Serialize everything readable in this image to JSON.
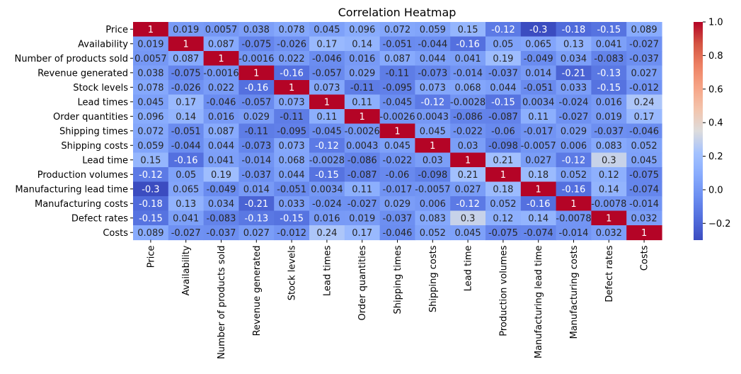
{
  "chart_data": {
    "type": "heatmap",
    "title": "Correlation Heatmap",
    "colormap": "coolwarm",
    "row_labels": [
      "Price",
      "Availability",
      "Number of products sold",
      "Revenue generated",
      "Stock levels",
      "Lead times",
      "Order quantities",
      "Shipping times",
      "Shipping costs",
      "Lead time",
      "Production volumes",
      "Manufacturing lead time",
      "Manufacturing costs",
      "Defect rates",
      "Costs"
    ],
    "col_labels": [
      "Price",
      "Availability",
      "Number of products sold",
      "Revenue generated",
      "Stock levels",
      "Lead times",
      "Order quantities",
      "Shipping times",
      "Shipping costs",
      "Lead time",
      "Production volumes",
      "Manufacturing lead time",
      "Manufacturing costs",
      "Defect rates",
      "Costs"
    ],
    "values": [
      [
        1,
        0.019,
        0.0057,
        0.038,
        0.078,
        0.045,
        0.096,
        0.072,
        0.059,
        0.15,
        -0.12,
        -0.3,
        -0.18,
        -0.15,
        0.089
      ],
      [
        0.019,
        1,
        0.087,
        -0.075,
        -0.026,
        0.17,
        0.14,
        -0.051,
        -0.044,
        -0.16,
        0.05,
        0.065,
        0.13,
        0.041,
        -0.027
      ],
      [
        0.0057,
        0.087,
        1,
        -0.0016,
        0.022,
        -0.046,
        0.016,
        0.087,
        0.044,
        0.041,
        0.19,
        -0.049,
        0.034,
        -0.083,
        -0.037
      ],
      [
        0.038,
        -0.075,
        -0.0016,
        1,
        -0.16,
        -0.057,
        0.029,
        -0.11,
        -0.073,
        -0.014,
        -0.037,
        0.014,
        -0.21,
        -0.13,
        0.027
      ],
      [
        0.078,
        -0.026,
        0.022,
        -0.16,
        1,
        0.073,
        -0.11,
        -0.095,
        0.073,
        0.068,
        0.044,
        -0.051,
        0.033,
        -0.15,
        -0.012
      ],
      [
        0.045,
        0.17,
        -0.046,
        -0.057,
        0.073,
        1,
        0.11,
        -0.045,
        -0.12,
        -0.0028,
        -0.15,
        0.0034,
        -0.024,
        0.016,
        0.24
      ],
      [
        0.096,
        0.14,
        0.016,
        0.029,
        -0.11,
        0.11,
        1,
        -0.0026,
        0.0043,
        -0.086,
        -0.087,
        0.11,
        -0.027,
        0.019,
        0.17
      ],
      [
        0.072,
        -0.051,
        0.087,
        -0.11,
        -0.095,
        -0.045,
        -0.0026,
        1,
        0.045,
        -0.022,
        -0.06,
        -0.017,
        0.029,
        -0.037,
        -0.046
      ],
      [
        0.059,
        -0.044,
        0.044,
        -0.073,
        0.073,
        -0.12,
        0.0043,
        0.045,
        1,
        0.03,
        -0.098,
        -0.0057,
        0.006,
        0.083,
        0.052
      ],
      [
        0.15,
        -0.16,
        0.041,
        -0.014,
        0.068,
        -0.0028,
        -0.086,
        -0.022,
        0.03,
        1,
        0.21,
        0.027,
        -0.12,
        0.3,
        0.045
      ],
      [
        -0.12,
        0.05,
        0.19,
        -0.037,
        0.044,
        -0.15,
        -0.087,
        -0.06,
        -0.098,
        0.21,
        1,
        0.18,
        0.052,
        0.12,
        -0.075
      ],
      [
        -0.3,
        0.065,
        -0.049,
        0.014,
        -0.051,
        0.0034,
        0.11,
        -0.017,
        -0.0057,
        0.027,
        0.18,
        1,
        -0.16,
        0.14,
        -0.074
      ],
      [
        -0.18,
        0.13,
        0.034,
        -0.21,
        0.033,
        -0.024,
        -0.027,
        0.029,
        0.006,
        -0.12,
        0.052,
        -0.16,
        1,
        -0.0078,
        -0.014
      ],
      [
        -0.15,
        0.041,
        -0.083,
        -0.13,
        -0.15,
        0.016,
        0.019,
        -0.037,
        0.083,
        0.3,
        0.12,
        0.14,
        -0.0078,
        1,
        0.032
      ],
      [
        0.089,
        -0.027,
        -0.037,
        0.027,
        -0.012,
        0.24,
        0.17,
        -0.046,
        0.052,
        0.045,
        -0.075,
        -0.074,
        -0.014,
        0.032,
        1
      ]
    ],
    "cell_labels": [
      [
        "1",
        "0.019",
        "0.0057",
        "0.038",
        "0.078",
        "0.045",
        "0.096",
        "0.072",
        "0.059",
        "0.15",
        "-0.12",
        "-0.3",
        "-0.18",
        "-0.15",
        "0.089"
      ],
      [
        "0.019",
        "1",
        "0.087",
        "-0.075",
        "-0.026",
        "0.17",
        "0.14",
        "-0.051",
        "-0.044",
        "-0.16",
        "0.05",
        "0.065",
        "0.13",
        "0.041",
        "-0.027"
      ],
      [
        "0.0057",
        "0.087",
        "1",
        "-0.0016",
        "0.022",
        "-0.046",
        "0.016",
        "0.087",
        "0.044",
        "0.041",
        "0.19",
        "-0.049",
        "0.034",
        "-0.083",
        "-0.037"
      ],
      [
        "0.038",
        "-0.075",
        "-0.0016",
        "1",
        "-0.16",
        "-0.057",
        "0.029",
        "-0.11",
        "-0.073",
        "-0.014",
        "-0.037",
        "0.014",
        "-0.21",
        "-0.13",
        "0.027"
      ],
      [
        "0.078",
        "-0.026",
        "0.022",
        "-0.16",
        "1",
        "0.073",
        "-0.11",
        "-0.095",
        "0.073",
        "0.068",
        "0.044",
        "-0.051",
        "0.033",
        "-0.15",
        "-0.012"
      ],
      [
        "0.045",
        "0.17",
        "-0.046",
        "-0.057",
        "0.073",
        "1",
        "0.11",
        "-0.045",
        "-0.12",
        "-0.0028",
        "-0.15",
        "0.0034",
        "-0.024",
        "0.016",
        "0.24"
      ],
      [
        "0.096",
        "0.14",
        "0.016",
        "0.029",
        "-0.11",
        "0.11",
        "1",
        "-0.0026",
        "0.0043",
        "-0.086",
        "-0.087",
        "0.11",
        "-0.027",
        "0.019",
        "0.17"
      ],
      [
        "0.072",
        "-0.051",
        "0.087",
        "-0.11",
        "-0.095",
        "-0.045",
        "-0.0026",
        "1",
        "0.045",
        "-0.022",
        "-0.06",
        "-0.017",
        "0.029",
        "-0.037",
        "-0.046"
      ],
      [
        "0.059",
        "-0.044",
        "0.044",
        "-0.073",
        "0.073",
        "-0.12",
        "0.0043",
        "0.045",
        "1",
        "0.03",
        "-0.098",
        "-0.0057",
        "0.006",
        "0.083",
        "0.052"
      ],
      [
        "0.15",
        "-0.16",
        "0.041",
        "-0.014",
        "0.068",
        "-0.0028",
        "-0.086",
        "-0.022",
        "0.03",
        "1",
        "0.21",
        "0.027",
        "-0.12",
        "0.3",
        "0.045"
      ],
      [
        "-0.12",
        "0.05",
        "0.19",
        "-0.037",
        "0.044",
        "-0.15",
        "-0.087",
        "-0.06",
        "-0.098",
        "0.21",
        "1",
        "0.18",
        "0.052",
        "0.12",
        "-0.075"
      ],
      [
        "-0.3",
        "0.065",
        "-0.049",
        "0.014",
        "-0.051",
        "0.0034",
        "0.11",
        "-0.017",
        "-0.0057",
        "0.027",
        "0.18",
        "1",
        "-0.16",
        "0.14",
        "-0.074"
      ],
      [
        "-0.18",
        "0.13",
        "0.034",
        "-0.21",
        "0.033",
        "-0.024",
        "-0.027",
        "0.029",
        "0.006",
        "-0.12",
        "0.052",
        "-0.16",
        "1",
        "-0.0078",
        "-0.014"
      ],
      [
        "-0.15",
        "0.041",
        "-0.083",
        "-0.13",
        "-0.15",
        "0.016",
        "0.019",
        "-0.037",
        "0.083",
        "0.3",
        "0.12",
        "0.14",
        "-0.0078",
        "1",
        "0.032"
      ],
      [
        "0.089",
        "-0.027",
        "-0.037",
        "0.027",
        "-0.012",
        "0.24",
        "0.17",
        "-0.046",
        "0.052",
        "0.045",
        "-0.075",
        "-0.074",
        "-0.014",
        "0.032",
        "1"
      ]
    ],
    "colorbar": {
      "range": [
        -0.3,
        1.0
      ],
      "ticks": [
        -0.2,
        0.0,
        0.2,
        0.4,
        0.6,
        0.8,
        1.0
      ],
      "tick_labels": [
        "−0.2",
        "0.0",
        "0.2",
        "0.4",
        "0.6",
        "0.8",
        "1.0"
      ]
    }
  }
}
